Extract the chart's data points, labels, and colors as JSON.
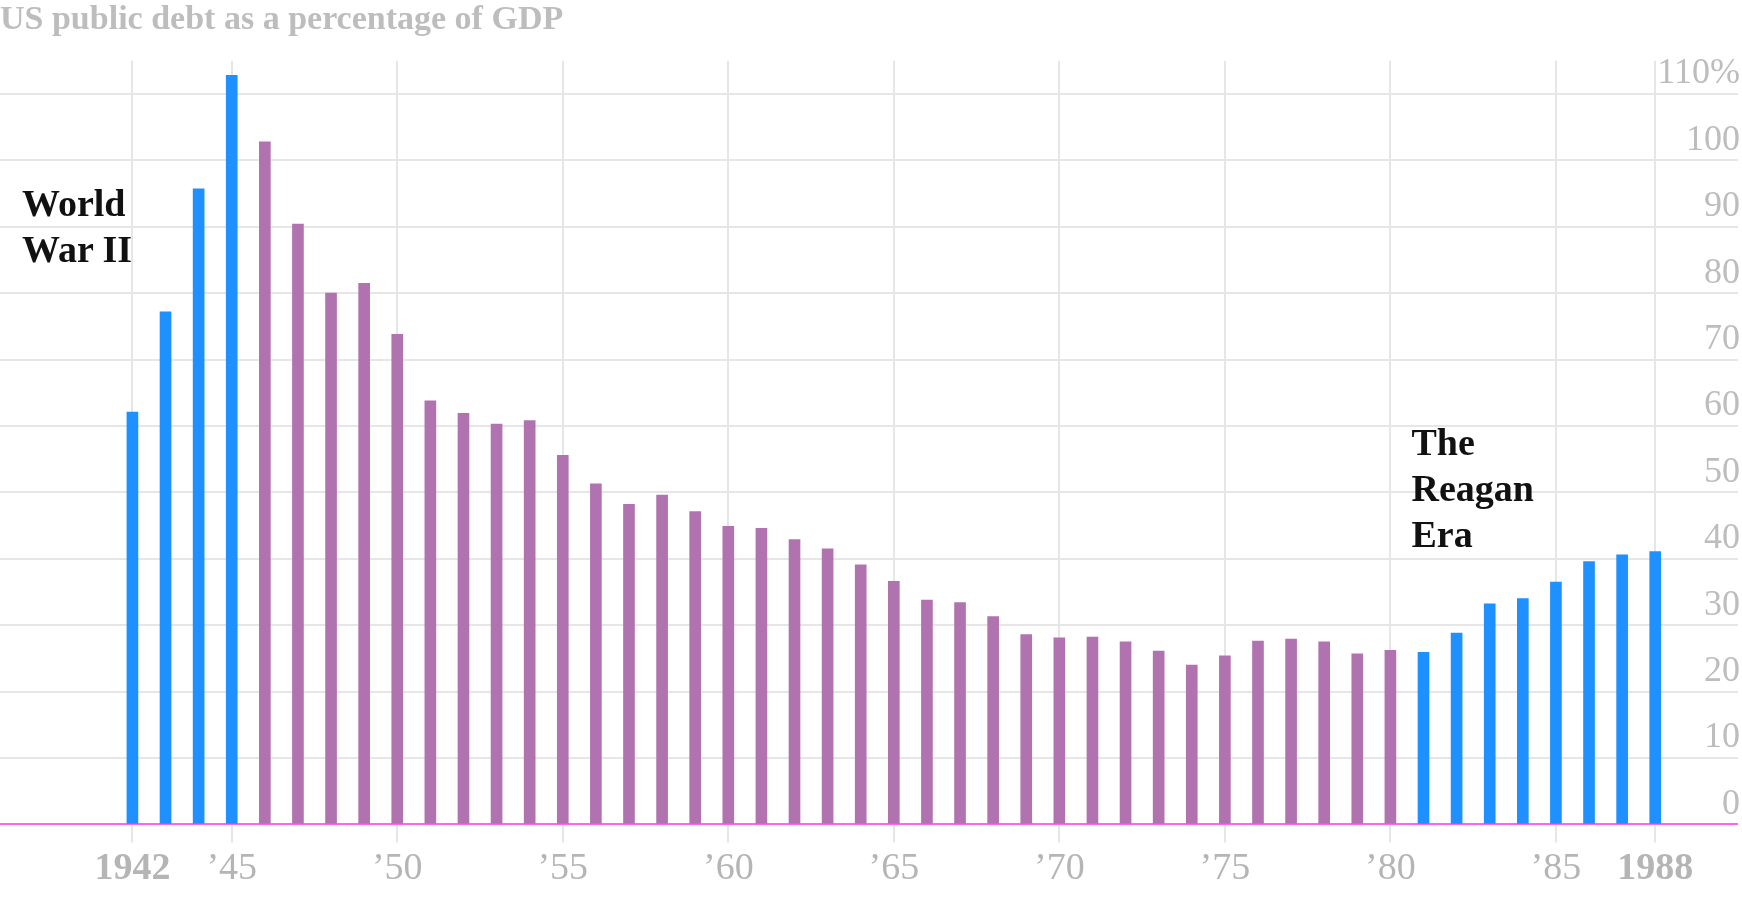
{
  "chart_data": {
    "type": "bar",
    "title": "US public debt as a percentage of GDP",
    "x": [
      1942,
      1943,
      1944,
      1945,
      1946,
      1947,
      1948,
      1949,
      1950,
      1951,
      1952,
      1953,
      1954,
      1955,
      1956,
      1957,
      1958,
      1959,
      1960,
      1961,
      1962,
      1963,
      1964,
      1965,
      1966,
      1967,
      1968,
      1969,
      1970,
      1971,
      1972,
      1973,
      1974,
      1975,
      1976,
      1977,
      1978,
      1979,
      1980,
      1981,
      1982,
      1983,
      1984,
      1985,
      1986,
      1987,
      1988
    ],
    "values": [
      62.1,
      77.2,
      95.7,
      112.8,
      102.8,
      90.4,
      80.0,
      81.5,
      73.8,
      63.8,
      61.9,
      60.3,
      60.8,
      55.6,
      51.3,
      48.2,
      49.6,
      47.1,
      44.9,
      44.6,
      42.9,
      41.5,
      39.1,
      36.6,
      33.8,
      33.4,
      31.3,
      28.6,
      28.1,
      28.2,
      27.5,
      26.1,
      24.0,
      25.4,
      27.6,
      27.9,
      27.5,
      25.7,
      26.2,
      25.9,
      28.8,
      33.2,
      34.0,
      36.5,
      39.6,
      40.6,
      41.1
    ],
    "colors": [
      "#1e90ff",
      "#1e90ff",
      "#1e90ff",
      "#1e90ff",
      "#b173b0",
      "#b173b0",
      "#b173b0",
      "#b173b0",
      "#b173b0",
      "#b173b0",
      "#b173b0",
      "#b173b0",
      "#b173b0",
      "#b173b0",
      "#b173b0",
      "#b173b0",
      "#b173b0",
      "#b173b0",
      "#b173b0",
      "#b173b0",
      "#b173b0",
      "#b173b0",
      "#b173b0",
      "#b173b0",
      "#b173b0",
      "#b173b0",
      "#b173b0",
      "#b173b0",
      "#b173b0",
      "#b173b0",
      "#b173b0",
      "#b173b0",
      "#b173b0",
      "#b173b0",
      "#b173b0",
      "#b173b0",
      "#b173b0",
      "#b173b0",
      "#b173b0",
      "#1e90ff",
      "#1e90ff",
      "#1e90ff",
      "#1e90ff",
      "#1e90ff",
      "#1e90ff",
      "#1e90ff",
      "#1e90ff"
    ],
    "xlim": [
      1938,
      1990.5
    ],
    "xticks": [
      1942,
      {
        "value": 1945,
        "label": "’45"
      },
      {
        "value": 1950,
        "label": "’50"
      },
      {
        "value": 1955,
        "label": "’55"
      },
      {
        "value": 1960,
        "label": "’60"
      },
      {
        "value": 1965,
        "label": "’65"
      },
      {
        "value": 1970,
        "label": "’70"
      },
      {
        "value": 1975,
        "label": "’75"
      },
      {
        "value": 1980,
        "label": "’80"
      },
      {
        "value": 1985,
        "label": "’85"
      },
      1988
    ],
    "ylim": [
      0,
      115
    ],
    "yticks": [
      0,
      10,
      20,
      30,
      40,
      50,
      60,
      70,
      80,
      90,
      100,
      {
        "value": 110,
        "label": "110%"
      }
    ],
    "annotations": [
      "World War II",
      "The Reagan Era"
    ],
    "grid": true,
    "legend": false
  }
}
